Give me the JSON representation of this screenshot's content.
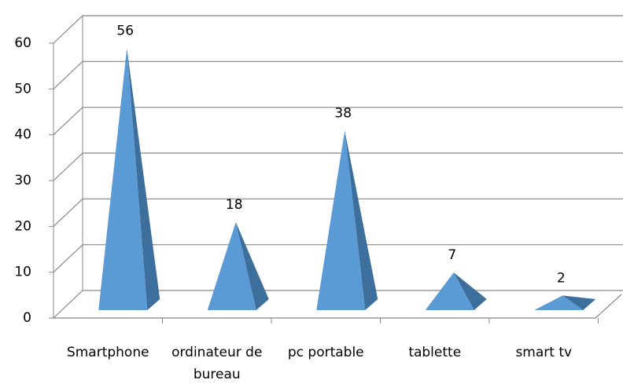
{
  "chart_data": {
    "type": "pyramid",
    "categories": [
      "Smartphone",
      "ordinateur de bureau",
      "pc portable",
      "tablette",
      "smart tv"
    ],
    "values": [
      56,
      18,
      38,
      7,
      2
    ],
    "color": "#5b9bd5",
    "side_color": "#3d6f9c",
    "ylim": [
      0,
      60
    ],
    "yticks": [
      0,
      10,
      20,
      30,
      40,
      50,
      60
    ],
    "grid": true
  }
}
